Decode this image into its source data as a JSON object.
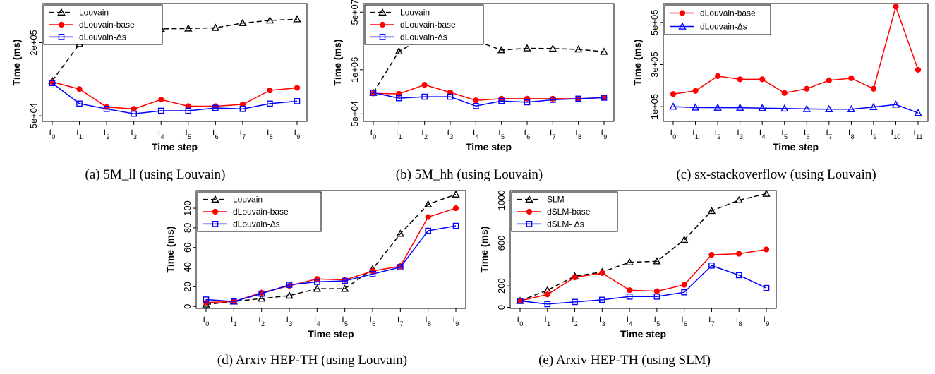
{
  "panels": [
    {
      "id": "a",
      "caption": "(a) 5M_ll (using Louvain)",
      "chart_data": {
        "type": "line",
        "categories": [
          "t0",
          "t1",
          "t2",
          "t3",
          "t4",
          "t5",
          "t6",
          "t7",
          "t8",
          "t9"
        ],
        "xlabel": "Time step",
        "ylabel": "Time (ms)",
        "scale": "log",
        "yticks": [
          50000,
          200000
        ],
        "ytick_labels": [
          "5e+04",
          "2e+05"
        ],
        "ylim": [
          45000,
          420000
        ],
        "legend_position": "top-left",
        "series": [
          {
            "name": "Louvain",
            "color": "#000000",
            "marker": "triangle",
            "dash": true,
            "values": [
              97000,
              195000,
              225000,
              240000,
              260000,
              262000,
              265000,
              290000,
              305000,
              312000
            ]
          },
          {
            "name": "dLouvain-base",
            "color": "#ff0000",
            "marker": "circle",
            "dash": false,
            "values": [
              95000,
              83000,
              59000,
              57000,
              68000,
              60000,
              60000,
              62000,
              81000,
              85000
            ]
          },
          {
            "name": "dLouvain-Δs",
            "color": "#0000ff",
            "marker": "square",
            "dash": false,
            "values": [
              93000,
              63000,
              57000,
              52000,
              55000,
              55000,
              58000,
              57000,
              63000,
              66000
            ]
          }
        ]
      }
    },
    {
      "id": "b",
      "caption": "(b) 5M_hh (using Louvain)",
      "chart_data": {
        "type": "line",
        "categories": [
          "t0",
          "t1",
          "t2",
          "t3",
          "t4",
          "t5",
          "t6",
          "t7",
          "t8",
          "t9"
        ],
        "xlabel": "Time step",
        "ylabel": "Time (ms)",
        "scale": "log",
        "yticks": [
          50000,
          1000000,
          50000000
        ],
        "ytick_labels": [
          "5e+04",
          "1e+06",
          "5e+07"
        ],
        "ylim": [
          30000,
          90000000
        ],
        "legend_position": "top-left",
        "series": [
          {
            "name": "Louvain",
            "color": "#000000",
            "marker": "triangle",
            "dash": true,
            "values": [
              210000,
              3500000,
              9000000,
              9000000,
              7200000,
              3800000,
              4300000,
              4200000,
              4000000,
              3400000
            ]
          },
          {
            "name": "dLouvain-base",
            "color": "#ff0000",
            "marker": "circle",
            "dash": false,
            "values": [
              200000,
              195000,
              360000,
              215000,
              125000,
              140000,
              140000,
              140000,
              140000,
              150000
            ]
          },
          {
            "name": "dLouvain-Δs",
            "color": "#0000ff",
            "marker": "square",
            "dash": false,
            "values": [
              210000,
              145000,
              160000,
              160000,
              85000,
              120000,
              110000,
              130000,
              140000,
              150000
            ]
          }
        ]
      }
    },
    {
      "id": "c",
      "caption": "(c) sx-stackoverflow (using Louvain)",
      "chart_data": {
        "type": "line",
        "categories": [
          "t0",
          "t1",
          "t2",
          "t3",
          "t4",
          "t5",
          "t6",
          "t7",
          "t8",
          "t9",
          "t10",
          "t11"
        ],
        "xlabel": "Time step",
        "ylabel": "Time (ms)",
        "scale": "linear",
        "yticks": [
          100000,
          300000,
          500000
        ],
        "ytick_labels": [
          "1e+05",
          "3e+05",
          "5e+05"
        ],
        "ylim": [
          30000,
          590000
        ],
        "legend_position": "top-left",
        "series": [
          {
            "name": "dLouvain-base",
            "color": "#ff0000",
            "marker": "circle",
            "dash": false,
            "values": [
              160000,
              175000,
              245000,
              230000,
              230000,
              165000,
              185000,
              225000,
              235000,
              185000,
              575000,
              275000
            ]
          },
          {
            "name": "dLouvain-Δs",
            "color": "#0000ff",
            "marker": "triangle",
            "dash": false,
            "values": [
              100000,
              96000,
              95000,
              95000,
              93000,
              91000,
              89000,
              88000,
              88000,
              98000,
              110000,
              70000
            ]
          }
        ]
      }
    },
    {
      "id": "d",
      "caption": "(d) Arxiv HEP-TH (using Louvain)",
      "chart_data": {
        "type": "line",
        "categories": [
          "t0",
          "t1",
          "t2",
          "t3",
          "t4",
          "t5",
          "t6",
          "t7",
          "t8",
          "t9"
        ],
        "xlabel": "Time step",
        "ylabel": "Time (ms)",
        "scale": "linear",
        "yticks": [
          0,
          20,
          40,
          60,
          80,
          100
        ],
        "ytick_labels": [
          "0",
          "20",
          "40",
          "60",
          "80",
          "100"
        ],
        "ylim": [
          -2,
          118
        ],
        "legend_position": "top-left",
        "series": [
          {
            "name": "Louvain",
            "color": "#000000",
            "marker": "triangle",
            "dash": true,
            "values": [
              2,
              5,
              8,
              11,
              18,
              18,
              38,
              74,
              104,
              114
            ]
          },
          {
            "name": "dLouvain-base",
            "color": "#ff0000",
            "marker": "circle",
            "dash": false,
            "values": [
              4,
              5,
              14,
              21,
              28,
              27,
              36,
              41,
              91,
              100
            ]
          },
          {
            "name": "dLouvain-Δs",
            "color": "#0000ff",
            "marker": "square",
            "dash": false,
            "values": [
              7,
              5,
              13,
              22,
              25,
              26,
              33,
              40,
              77,
              82
            ]
          }
        ]
      }
    },
    {
      "id": "e",
      "caption": "(e) Arxiv HEP-TH (using SLM)",
      "chart_data": {
        "type": "line",
        "categories": [
          "t0",
          "t1",
          "t2",
          "t3",
          "t4",
          "t5",
          "t6",
          "t7",
          "t8",
          "t9"
        ],
        "xlabel": "Time step",
        "ylabel": "Time (ms)",
        "scale": "linear",
        "yticks": [
          0,
          200,
          600,
          1000
        ],
        "ytick_labels": [
          "0",
          "200",
          "600",
          "1000"
        ],
        "ylim": [
          -10,
          1090
        ],
        "legend_position": "top-left",
        "series": [
          {
            "name": "SLM",
            "color": "#000000",
            "marker": "triangle",
            "dash": true,
            "values": [
              60,
              160,
              290,
              330,
              420,
              430,
              630,
              900,
              1000,
              1060
            ]
          },
          {
            "name": "dSLM-base",
            "color": "#ff0000",
            "marker": "circle",
            "dash": false,
            "values": [
              60,
              120,
              280,
              320,
              160,
              150,
              210,
              490,
              500,
              540
            ]
          },
          {
            "name": "dSLM- Δs",
            "color": "#0000ff",
            "marker": "square",
            "dash": false,
            "values": [
              60,
              30,
              50,
              70,
              100,
              100,
              140,
              390,
              300,
              180
            ]
          }
        ]
      }
    }
  ]
}
